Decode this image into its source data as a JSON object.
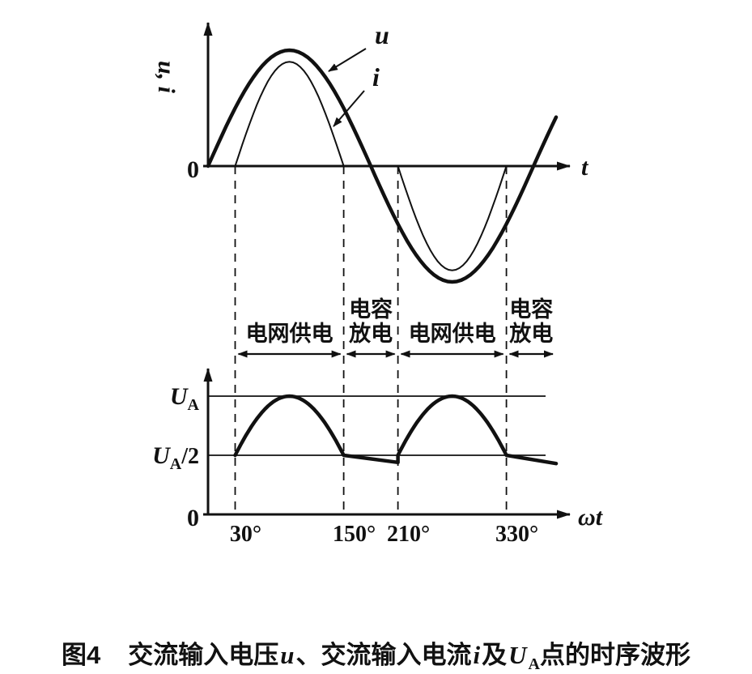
{
  "chart_data": [
    {
      "type": "line",
      "ylabel": "u, i",
      "xlabel": "t",
      "origin_label": "0",
      "x_unit": "degrees",
      "x_range_deg": [
        0,
        385
      ],
      "series": [
        {
          "name": "AC input voltage",
          "label": "u",
          "shape": "sine",
          "amplitude": 1.0,
          "period_deg": 360
        },
        {
          "name": "AC input current",
          "label": "i",
          "shape": "conduction_pulse",
          "amplitude": 0.9,
          "conduction_deg": [
            [
              30,
              150
            ],
            [
              210,
              330
            ]
          ]
        }
      ]
    },
    {
      "type": "line",
      "xlabel": "ωt",
      "origin_label": "0",
      "y_labels": [
        {
          "main": "U",
          "sub": "A",
          "value": 1.0
        },
        {
          "main": "U",
          "sub": "A",
          "suffix": "/2",
          "value": 0.5
        }
      ],
      "reference_levels": [
        1.0,
        0.5
      ],
      "x_ticks": [
        {
          "deg": 30,
          "label": "30°"
        },
        {
          "deg": 150,
          "label": "150°"
        },
        {
          "deg": 210,
          "label": "210°"
        },
        {
          "deg": 330,
          "label": "330°"
        }
      ],
      "segments": [
        {
          "kind": "rectified_sine",
          "from_deg": 30,
          "to_deg": 150
        },
        {
          "kind": "discharge",
          "from_deg": 150,
          "to_deg": 210,
          "start": 0.5,
          "end": 0.44
        },
        {
          "kind": "rectified_sine",
          "from_deg": 210,
          "to_deg": 330
        },
        {
          "kind": "discharge",
          "from_deg": 330,
          "to_deg": 385,
          "start": 0.5,
          "end": 0.43
        }
      ]
    }
  ],
  "regions": [
    {
      "lines": [
        "电网供电"
      ],
      "from_deg": 30,
      "to_deg": 150
    },
    {
      "lines": [
        "电容",
        "放电"
      ],
      "from_deg": 150,
      "to_deg": 210
    },
    {
      "lines": [
        "电网供电"
      ],
      "from_deg": 210,
      "to_deg": 330
    },
    {
      "lines": [
        "电容",
        "放电"
      ],
      "from_deg": 330,
      "to_deg": 385
    }
  ],
  "caption": {
    "fig_label": "图4",
    "part1": "交流输入电压",
    "sym_u": "u",
    "part2": "、交流输入电流",
    "sym_i": "i",
    "part3": "及",
    "sym_U": "U",
    "sub_A": "A",
    "part4": "点的时序波形"
  }
}
